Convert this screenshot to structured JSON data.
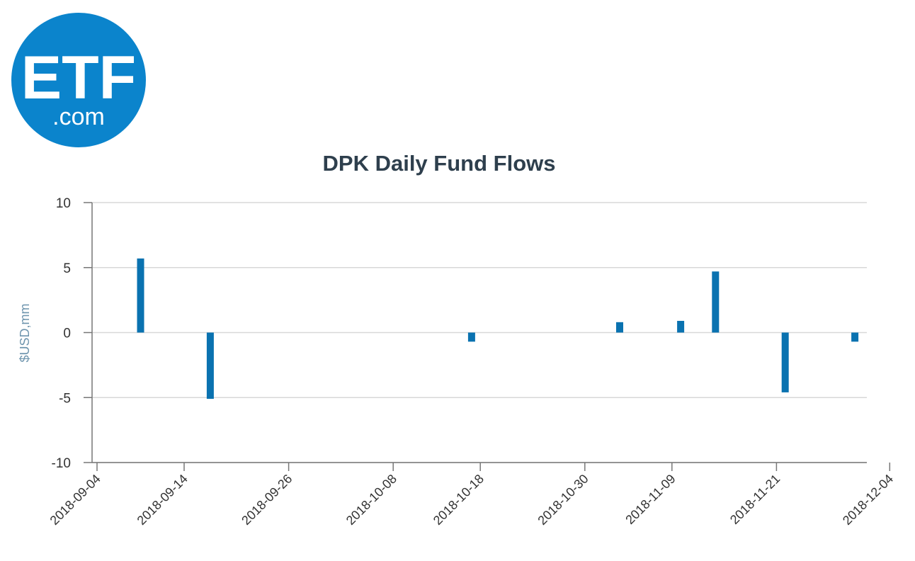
{
  "logo": {
    "text_main": "ETF",
    "text_sub": ".com",
    "color": "#0b84cc"
  },
  "chart_data": {
    "type": "bar",
    "title": "DPK Daily Fund Flows",
    "xlabel": "",
    "ylabel": "$USD,mm",
    "ylim": [
      -10,
      10
    ],
    "yticks": [
      "10",
      "5",
      "0",
      "-5",
      "-10"
    ],
    "xticks": [
      "2018-09-04",
      "2018-09-14",
      "2018-09-26",
      "2018-10-08",
      "2018-10-18",
      "2018-10-30",
      "2018-11-09",
      "2018-11-21",
      "2018-12-04"
    ],
    "grid": true,
    "legend": "none",
    "bar_color": "#0a72b0",
    "series": [
      {
        "x": [
          "2018-09-09",
          "2018-09-17",
          "2018-10-17",
          "2018-11-03",
          "2018-11-10",
          "2018-11-14",
          "2018-11-22",
          "2018-11-30"
        ],
        "values": [
          5.7,
          -5.1,
          -0.7,
          0.8,
          0.9,
          4.7,
          -4.6,
          -0.7
        ]
      }
    ]
  }
}
